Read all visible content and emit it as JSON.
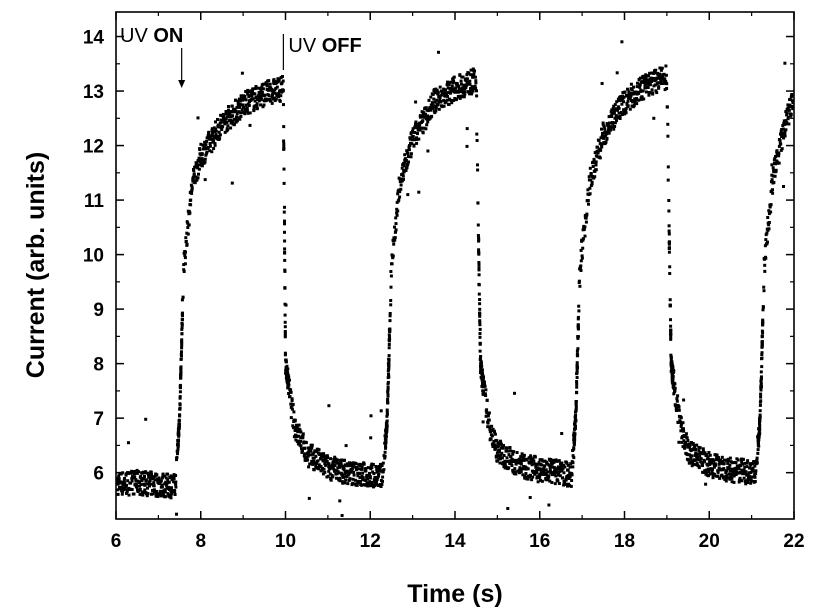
{
  "chart_data": {
    "type": "scatter",
    "xlabel": "Time (s)",
    "ylabel": "Current (arb. units)",
    "xlim": [
      6,
      22
    ],
    "ylim": [
      5.15,
      14.45
    ],
    "x_ticks": [
      6,
      8,
      10,
      12,
      14,
      16,
      18,
      20,
      22
    ],
    "y_ticks": [
      6,
      7,
      8,
      9,
      10,
      11,
      12,
      13,
      14
    ],
    "grid": false,
    "legend": "none",
    "marker_color": "#000000",
    "uv_on_times": [
      7.45,
      12.35,
      16.8,
      21.15
    ],
    "uv_off_times": [
      9.95,
      14.55,
      19.05
    ],
    "baseline_off": 5.85,
    "plateau_on": 13.1,
    "series": [
      {
        "points": [
          [
            6.0,
            5.8
          ],
          [
            6.5,
            5.82
          ],
          [
            7.0,
            5.78
          ],
          [
            7.4,
            5.75
          ],
          [
            7.5,
            7.0
          ],
          [
            7.6,
            9.8
          ],
          [
            7.8,
            11.3
          ],
          [
            8.0,
            11.8
          ],
          [
            8.5,
            12.4
          ],
          [
            9.0,
            12.75
          ],
          [
            9.5,
            12.95
          ],
          [
            9.95,
            13.05
          ],
          [
            10.0,
            8.0
          ],
          [
            10.2,
            6.9
          ],
          [
            10.5,
            6.35
          ],
          [
            11.0,
            6.1
          ],
          [
            11.5,
            6.0
          ],
          [
            12.0,
            5.95
          ],
          [
            12.3,
            5.95
          ],
          [
            12.4,
            7.0
          ],
          [
            12.5,
            9.8
          ],
          [
            12.7,
            11.3
          ],
          [
            13.0,
            12.1
          ],
          [
            13.5,
            12.8
          ],
          [
            14.0,
            13.05
          ],
          [
            14.5,
            13.2
          ],
          [
            14.6,
            8.0
          ],
          [
            14.8,
            6.9
          ],
          [
            15.0,
            6.4
          ],
          [
            15.5,
            6.15
          ],
          [
            16.0,
            6.05
          ],
          [
            16.5,
            6.0
          ],
          [
            16.75,
            5.95
          ],
          [
            16.85,
            7.0
          ],
          [
            16.95,
            9.8
          ],
          [
            17.2,
            11.4
          ],
          [
            17.5,
            12.2
          ],
          [
            18.0,
            12.8
          ],
          [
            18.5,
            13.1
          ],
          [
            19.0,
            13.25
          ],
          [
            19.1,
            8.0
          ],
          [
            19.3,
            6.9
          ],
          [
            19.5,
            6.4
          ],
          [
            20.0,
            6.15
          ],
          [
            20.5,
            6.05
          ],
          [
            21.1,
            6.0
          ],
          [
            21.2,
            7.0
          ],
          [
            21.3,
            9.8
          ],
          [
            21.5,
            11.4
          ],
          [
            21.8,
            12.4
          ],
          [
            22.0,
            12.9
          ]
        ]
      }
    ],
    "annotations": [
      {
        "label": "UV",
        "emphasis": "ON",
        "x": 7.55,
        "y": 14.05
      },
      {
        "label": "UV",
        "emphasis": "OFF",
        "x": 9.95,
        "y": 14.05
      }
    ]
  }
}
